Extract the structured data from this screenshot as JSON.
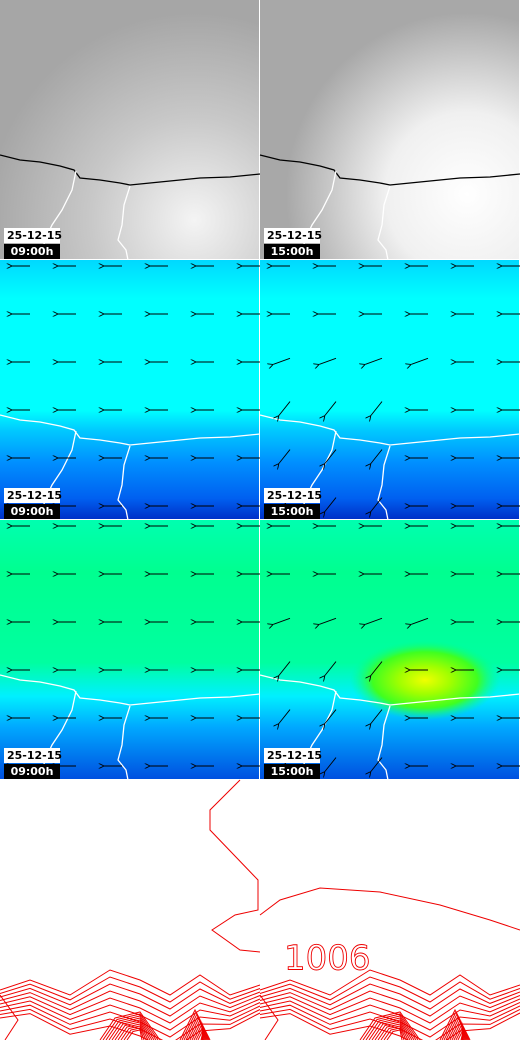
{
  "panels": [
    {
      "date": "25-12-15",
      "time": "09:00h"
    },
    {
      "date": "25-12-15",
      "time": "15:00h"
    },
    {
      "date": "25-12-15",
      "time": "09:00h"
    },
    {
      "date": "25-12-15",
      "time": "15:00h"
    },
    {
      "date": "25-12-15",
      "time": "09:00h"
    },
    {
      "date": "25-12-15",
      "time": "15:00h"
    }
  ],
  "contour_label": "1006"
}
